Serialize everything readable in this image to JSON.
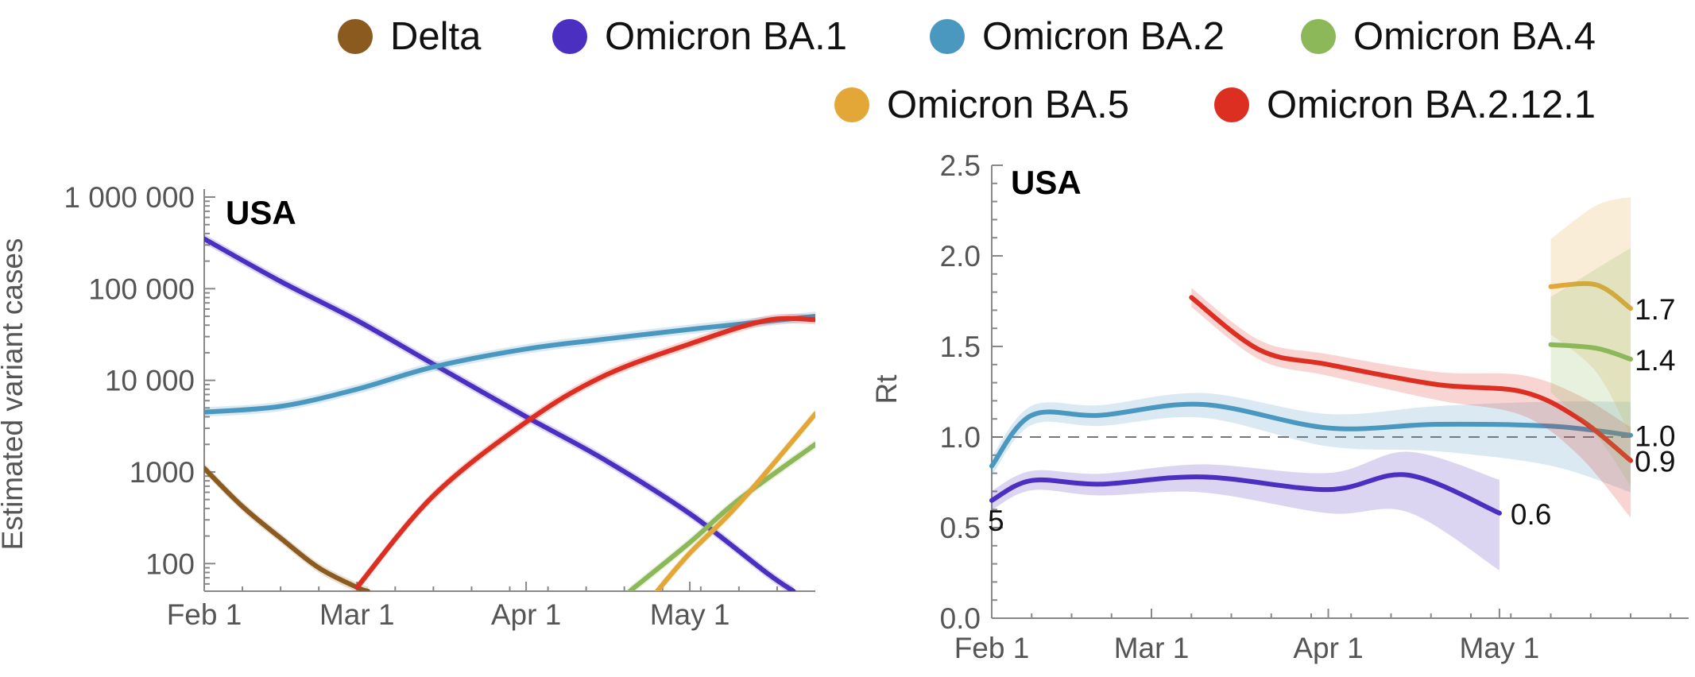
{
  "legend": [
    {
      "name": "Delta",
      "color": "#8B5A1E"
    },
    {
      "name": "Omicron BA.1",
      "color": "#4A2FC0"
    },
    {
      "name": "Omicron BA.2",
      "color": "#4A98C0"
    },
    {
      "name": "Omicron BA.4",
      "color": "#8CB85A"
    },
    {
      "name": "Omicron BA.5",
      "color": "#E3A737"
    },
    {
      "name": "Omicron BA.2.12.1",
      "color": "#DD2E22"
    }
  ],
  "chart_data": [
    {
      "type": "line",
      "title": "USA",
      "xlabel": "",
      "ylabel": "Estimated variant cases",
      "yscale": "log",
      "xlim": [
        "2022-02-01",
        "2022-05-24"
      ],
      "ylim": [
        50,
        1000000
      ],
      "xticks": [
        "Feb 1",
        "Mar 1",
        "Apr 1",
        "May 1"
      ],
      "yticks": [
        "1 000 000",
        "100 000",
        "10 000",
        "1000",
        "100"
      ],
      "series": [
        {
          "name": "Delta",
          "color": "#8B5A1E",
          "x": [
            "2022-02-01",
            "2022-02-08",
            "2022-02-15",
            "2022-02-22",
            "2022-03-01",
            "2022-03-03"
          ],
          "y": [
            1100,
            420,
            190,
            90,
            55,
            50
          ]
        },
        {
          "name": "Omicron BA.1",
          "color": "#4A2FC0",
          "x": [
            "2022-02-01",
            "2022-02-15",
            "2022-03-01",
            "2022-03-15",
            "2022-04-01",
            "2022-04-15",
            "2022-05-01",
            "2022-05-15",
            "2022-05-20"
          ],
          "y": [
            350000,
            120000,
            45000,
            15000,
            4000,
            1400,
            350,
            80,
            50
          ]
        },
        {
          "name": "Omicron BA.2",
          "color": "#4A98C0",
          "x": [
            "2022-02-01",
            "2022-02-15",
            "2022-03-01",
            "2022-03-15",
            "2022-04-01",
            "2022-04-15",
            "2022-05-01",
            "2022-05-15",
            "2022-05-24"
          ],
          "y": [
            4500,
            5200,
            8000,
            14000,
            22000,
            28000,
            36000,
            44000,
            50000
          ]
        },
        {
          "name": "Omicron BA.2.12.1",
          "color": "#DD2E22",
          "x": [
            "2022-03-01",
            "2022-03-15",
            "2022-04-01",
            "2022-04-15",
            "2022-05-01",
            "2022-05-15",
            "2022-05-24"
          ],
          "y": [
            55,
            550,
            3500,
            11000,
            25000,
            45000,
            46000
          ]
        },
        {
          "name": "Omicron BA.4",
          "color": "#8CB85A",
          "x": [
            "2022-04-20",
            "2022-05-01",
            "2022-05-10",
            "2022-05-24"
          ],
          "y": [
            50,
            170,
            500,
            2000
          ]
        },
        {
          "name": "Omicron BA.5",
          "color": "#E3A737",
          "x": [
            "2022-04-25",
            "2022-05-01",
            "2022-05-10",
            "2022-05-24"
          ],
          "y": [
            50,
            130,
            450,
            4300
          ]
        }
      ]
    },
    {
      "type": "line",
      "title": "USA",
      "xlabel": "",
      "ylabel": "Rt",
      "xlim": [
        "2022-02-01",
        "2022-05-24"
      ],
      "ylim": [
        0,
        2.5
      ],
      "xticks": [
        "Feb 1",
        "Mar 1",
        "Apr 1",
        "May 1"
      ],
      "yticks": [
        "0.0",
        "0.5",
        "1.0",
        "1.5",
        "2.0",
        "2.5"
      ],
      "reference_line": 1.0,
      "series": [
        {
          "name": "Omicron BA.1",
          "color": "#4A2FC0",
          "end_label": "0.6",
          "start_label": "5",
          "x": [
            "2022-02-01",
            "2022-02-08",
            "2022-02-20",
            "2022-03-10",
            "2022-04-01",
            "2022-04-15",
            "2022-05-01"
          ],
          "y": [
            0.65,
            0.76,
            0.74,
            0.78,
            0.71,
            0.79,
            0.58
          ]
        },
        {
          "name": "Omicron BA.2",
          "color": "#4A98C0",
          "end_label": "1.0",
          "x": [
            "2022-02-01",
            "2022-02-08",
            "2022-02-20",
            "2022-03-10",
            "2022-04-01",
            "2022-04-20",
            "2022-05-10",
            "2022-05-24"
          ],
          "y": [
            0.84,
            1.12,
            1.12,
            1.18,
            1.05,
            1.07,
            1.06,
            1.01
          ]
        },
        {
          "name": "Omicron BA.2.12.1",
          "color": "#DD2E22",
          "end_label": "0.9",
          "x": [
            "2022-03-08",
            "2022-03-20",
            "2022-04-01",
            "2022-04-20",
            "2022-05-05",
            "2022-05-15",
            "2022-05-24"
          ],
          "y": [
            1.77,
            1.48,
            1.4,
            1.29,
            1.25,
            1.1,
            0.87
          ]
        },
        {
          "name": "Omicron BA.5",
          "color": "#E3A737",
          "end_label": "1.7",
          "x": [
            "2022-05-10",
            "2022-05-18",
            "2022-05-24"
          ],
          "y": [
            1.83,
            1.84,
            1.71
          ]
        },
        {
          "name": "Omicron BA.4",
          "color": "#8CB85A",
          "end_label": "1.4",
          "x": [
            "2022-05-10",
            "2022-05-18",
            "2022-05-24"
          ],
          "y": [
            1.51,
            1.49,
            1.43
          ]
        }
      ]
    }
  ]
}
